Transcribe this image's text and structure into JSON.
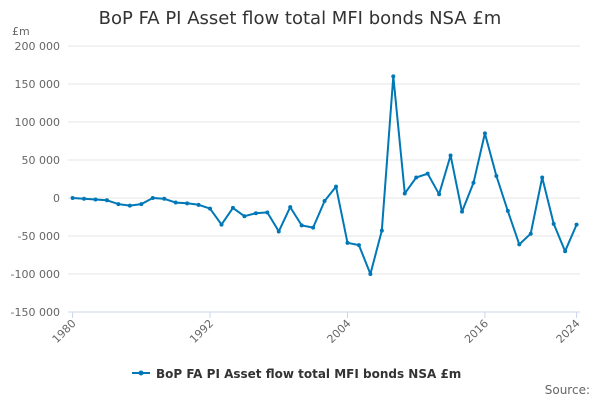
{
  "chart_data": {
    "type": "line",
    "title": "BoP FA PI Asset flow total MFI bonds NSA £m",
    "unit_label": "£m",
    "xlabel": "",
    "ylabel": "£m",
    "ylim": [
      -150000,
      200000
    ],
    "yticks": [
      200000,
      150000,
      100000,
      50000,
      0,
      -50000,
      -100000,
      -150000
    ],
    "ytick_labels": [
      "200 000",
      "150 000",
      "100 000",
      "50 000",
      "0",
      "-50 000",
      "-100 000",
      "-150 000"
    ],
    "xlim": [
      1980,
      2024
    ],
    "xticks": [
      1980,
      1992,
      2004,
      2016,
      2024
    ],
    "xtick_labels": [
      "1980",
      "1992",
      "2004",
      "2016",
      "2024"
    ],
    "grid": true,
    "legend_position": "bottom-center",
    "series": [
      {
        "name": "BoP FA PI Asset flow total MFI bonds NSA £m",
        "color": "#0077b6",
        "x": [
          1980,
          1981,
          1982,
          1983,
          1984,
          1985,
          1986,
          1987,
          1988,
          1989,
          1990,
          1991,
          1992,
          1993,
          1994,
          1995,
          1996,
          1997,
          1998,
          1999,
          2000,
          2001,
          2002,
          2003,
          2004,
          2005,
          2006,
          2007,
          2008,
          2009,
          2010,
          2011,
          2012,
          2013,
          2014,
          2015,
          2016,
          2017,
          2018,
          2019,
          2020,
          2021,
          2022,
          2023,
          2024
        ],
        "values": [
          0,
          -1000,
          -2000,
          -3000,
          -8000,
          -10000,
          -8000,
          0,
          -1000,
          -6000,
          -7000,
          -9000,
          -14000,
          -35000,
          -13000,
          -24000,
          -20000,
          -19000,
          -44000,
          -12000,
          -36000,
          -39000,
          -4000,
          15000,
          -59000,
          -62000,
          -100000,
          -43000,
          160000,
          6000,
          27000,
          32000,
          5000,
          56000,
          -18000,
          20000,
          85000,
          29000,
          -17000,
          -61000,
          -47000,
          27000,
          -34000,
          -70000,
          -35000
        ]
      }
    ]
  },
  "source_label": "Source:"
}
